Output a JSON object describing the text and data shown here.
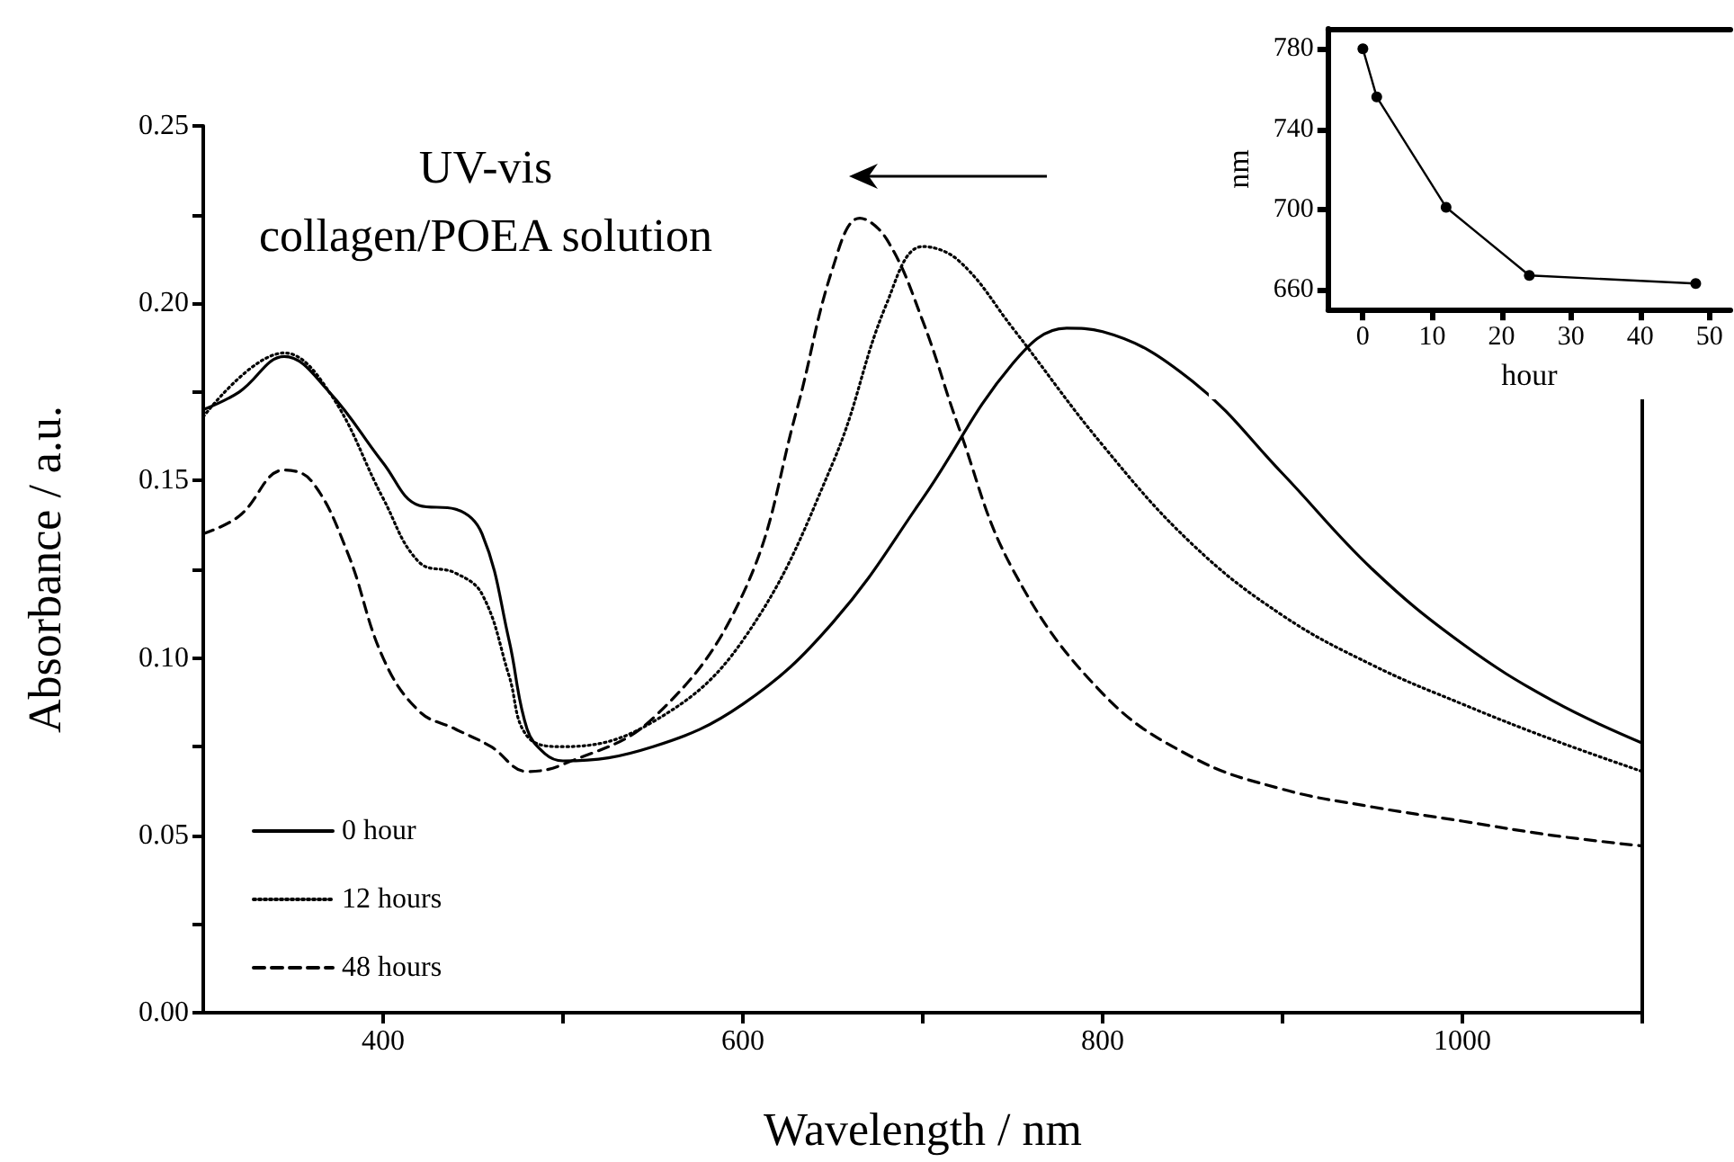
{
  "chart_data": [
    {
      "type": "line",
      "xlabel": "Wavelength / nm",
      "ylabel": "Absorbance / a.u.",
      "annotations": [
        "UV-vis",
        "collagen/POEA solution"
      ],
      "xlim": [
        300,
        1100
      ],
      "xticks": [
        400,
        {
          "value": 500,
          "label": null
        },
        600,
        {
          "value": 700,
          "label": null
        },
        800,
        {
          "value": 900,
          "label": null
        },
        1000,
        {
          "value": 1100,
          "label": null
        }
      ],
      "ylim": [
        0,
        0.25
      ],
      "yticks": [
        {
          "value": 0,
          "label": "0.00"
        },
        {
          "value": 0.025,
          "label": null
        },
        0.05,
        {
          "value": 0.075,
          "label": null
        },
        {
          "value": 0.1,
          "label": "0.10"
        },
        {
          "value": 0.125,
          "label": null
        },
        0.15,
        {
          "value": 0.175,
          "label": null
        },
        {
          "value": 0.2,
          "label": "0.20"
        },
        {
          "value": 0.225,
          "label": null
        },
        0.25
      ],
      "grid": false,
      "legend": "bottom left",
      "marker": "none",
      "series": [
        {
          "name": "0 hour",
          "color": "#000000",
          "line_style": "solid",
          "x": [
            300,
            320,
            345,
            370,
            400,
            420,
            440,
            455,
            470,
            480,
            490,
            500,
            550,
            600,
            650,
            700,
            750,
            780,
            800,
            850,
            900,
            950,
            1000,
            1050,
            1100
          ],
          "values": [
            0.17,
            0.175,
            0.185,
            0.175,
            0.155,
            0.143,
            0.142,
            0.135,
            0.105,
            0.08,
            0.073,
            0.071,
            0.075,
            0.087,
            0.11,
            0.145,
            0.183,
            0.193,
            0.192,
            0.178,
            0.152,
            0.125,
            0.104,
            0.088,
            0.076
          ]
        },
        {
          "name": "12 hours",
          "color": "#000000",
          "line_style": "dotted",
          "x": [
            300,
            345,
            370,
            400,
            420,
            440,
            455,
            470,
            480,
            500,
            550,
            600,
            650,
            680,
            700,
            720,
            750,
            800,
            850,
            900,
            950,
            1000,
            1050,
            1100
          ],
          "values": [
            0.168,
            0.186,
            0.175,
            0.145,
            0.127,
            0.124,
            0.118,
            0.095,
            0.078,
            0.075,
            0.082,
            0.105,
            0.155,
            0.2,
            0.216,
            0.212,
            0.193,
            0.16,
            0.132,
            0.112,
            0.098,
            0.087,
            0.077,
            0.068
          ]
        },
        {
          "name": "48 hours",
          "color": "#000000",
          "line_style": "dashed",
          "x": [
            300,
            320,
            345,
            360,
            380,
            400,
            420,
            440,
            460,
            480,
            500,
            550,
            600,
            630,
            650,
            665,
            680,
            700,
            720,
            750,
            800,
            850,
            900,
            950,
            1000,
            1050,
            1100
          ],
          "values": [
            0.135,
            0.14,
            0.153,
            0.15,
            0.13,
            0.1,
            0.085,
            0.08,
            0.075,
            0.068,
            0.07,
            0.083,
            0.118,
            0.17,
            0.21,
            0.224,
            0.218,
            0.195,
            0.165,
            0.125,
            0.09,
            0.072,
            0.063,
            0.058,
            0.054,
            0.05,
            0.047
          ]
        }
      ]
    },
    {
      "type": "line",
      "xlabel": "hour",
      "ylabel": "nm",
      "xlim": [
        -5,
        53
      ],
      "xticks": [
        0,
        10,
        20,
        30,
        40,
        50
      ],
      "ylim": [
        650,
        790
      ],
      "yticks": [
        660,
        700,
        740,
        780
      ],
      "grid": false,
      "legend": false,
      "marker": "circle",
      "series": [
        {
          "color": "#000000",
          "line_style": "solid",
          "x": [
            0,
            2,
            12,
            24,
            48
          ],
          "values": [
            780,
            756,
            701,
            667,
            663
          ]
        }
      ]
    }
  ]
}
